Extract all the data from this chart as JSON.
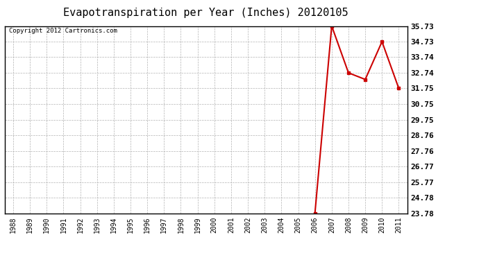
{
  "title": "Evapotranspiration per Year (Inches) 20120105",
  "copyright_text": "Copyright 2012 Cartronics.com",
  "years": [
    1988,
    1989,
    1990,
    1991,
    1992,
    1993,
    1994,
    1995,
    1996,
    1997,
    1998,
    1999,
    2000,
    2001,
    2002,
    2003,
    2004,
    2005,
    2006,
    2007,
    2008,
    2009,
    2010,
    2011
  ],
  "values": [
    null,
    null,
    null,
    null,
    null,
    null,
    null,
    null,
    null,
    null,
    null,
    null,
    null,
    null,
    null,
    null,
    null,
    null,
    23.78,
    35.73,
    32.74,
    32.32,
    34.73,
    31.75
  ],
  "yticks": [
    23.78,
    24.78,
    25.77,
    26.77,
    27.76,
    28.76,
    29.75,
    30.75,
    31.75,
    32.74,
    33.74,
    34.73,
    35.73
  ],
  "ylim_min": 23.78,
  "ylim_max": 35.73,
  "line_color": "#cc0000",
  "marker": "s",
  "marker_size": 3,
  "background_color": "#ffffff",
  "plot_bg_color": "#ffffff",
  "grid_color": "#aaaaaa",
  "title_fontsize": 11,
  "copyright_fontsize": 6.5,
  "tick_fontsize": 7,
  "ytick_fontsize": 8
}
